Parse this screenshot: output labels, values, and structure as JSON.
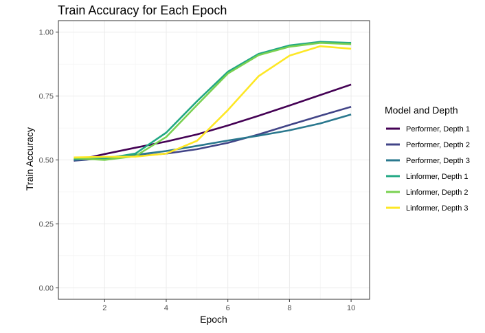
{
  "chart_data": {
    "type": "line",
    "title": "Train Accuracy for Each Epoch",
    "xlabel": "Epoch",
    "ylabel": "Train Accuracy",
    "xlim": [
      0.5,
      10.6
    ],
    "ylim": [
      -0.045,
      1.045
    ],
    "xticks": [
      2,
      4,
      6,
      8,
      10
    ],
    "yticks": [
      0.0,
      0.25,
      0.5,
      0.75,
      1.0
    ],
    "ytick_labels": [
      "0.00",
      "0.25",
      "0.50",
      "0.75",
      "1.00"
    ],
    "grid": true,
    "legend": {
      "title": "Model and Depth",
      "position": "right"
    },
    "x": [
      1,
      2,
      3,
      4,
      5,
      6,
      7,
      8,
      9,
      10
    ],
    "series": [
      {
        "name": "Performer, Depth 1",
        "color": "#440154",
        "values": [
          0.497,
          0.523,
          0.548,
          0.572,
          0.6,
          0.635,
          0.673,
          0.713,
          0.754,
          0.795
        ]
      },
      {
        "name": "Performer, Depth 2",
        "color": "#414487",
        "values": [
          0.497,
          0.507,
          0.515,
          0.525,
          0.542,
          0.567,
          0.6,
          0.637,
          0.673,
          0.708
        ]
      },
      {
        "name": "Performer, Depth 3",
        "color": "#2a788e",
        "values": [
          0.5,
          0.509,
          0.52,
          0.535,
          0.555,
          0.576,
          0.595,
          0.616,
          0.643,
          0.678
        ]
      },
      {
        "name": "Linformer, Depth 1",
        "color": "#22a884",
        "values": [
          0.505,
          0.505,
          0.525,
          0.607,
          0.73,
          0.845,
          0.915,
          0.948,
          0.962,
          0.958
        ]
      },
      {
        "name": "Linformer, Depth 2",
        "color": "#7ad151",
        "values": [
          0.507,
          0.5,
          0.515,
          0.59,
          0.715,
          0.838,
          0.91,
          0.943,
          0.958,
          0.953
        ]
      },
      {
        "name": "Linformer, Depth 3",
        "color": "#fde725",
        "values": [
          0.51,
          0.512,
          0.513,
          0.525,
          0.575,
          0.695,
          0.828,
          0.908,
          0.945,
          0.935
        ]
      }
    ]
  }
}
